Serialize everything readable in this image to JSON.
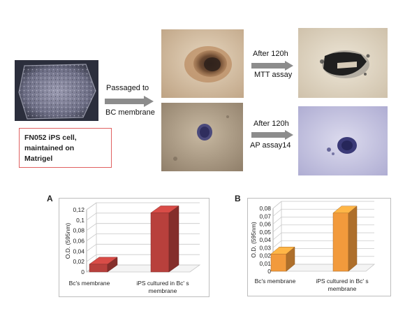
{
  "figure": {
    "arrows": {
      "passaged_line1": "Passaged to",
      "passaged_line2": "BC membrane",
      "top_line1": "After 120h",
      "top_line2": "MTT assay",
      "bottom_line1": "After 120h",
      "bottom_line2": "AP assay14"
    },
    "note": {
      "line1": "FN052 iPS cell,",
      "line2": "maintained on",
      "line3": "Matrigel"
    },
    "colors": {
      "arrow": "#8c8c8c",
      "note_border": "#e06060",
      "bar_a": "#b8403c",
      "bar_b": "#f29a3c"
    }
  },
  "chart_data": [
    {
      "type": "bar",
      "panel": "A",
      "categories": [
        "Bc's membrane",
        "iPS cultured in Bc' s membrane"
      ],
      "values": [
        0.015,
        0.114
      ],
      "ylabel": "O.D. (595nm)",
      "ylim": [
        0,
        0.12
      ],
      "yticks": [
        "0",
        "0,02",
        "0,04",
        "0,06",
        "0,08",
        "0,1",
        "0,12"
      ],
      "color": "#b8403c",
      "style": "3d",
      "grid": true
    },
    {
      "type": "bar",
      "panel": "B",
      "categories": [
        "Bc's membrane",
        "iPS cultured in Bc' s membrane"
      ],
      "values": [
        0.022,
        0.074
      ],
      "ylabel": "O.D. (595nm)",
      "ylim": [
        0,
        0.08
      ],
      "yticks": [
        "0",
        "0,01",
        "0,02",
        "0,03",
        "0,04",
        "0,05",
        "0,06",
        "0,07",
        "0,08"
      ],
      "color": "#f29a3c",
      "style": "3d",
      "grid": true
    }
  ]
}
